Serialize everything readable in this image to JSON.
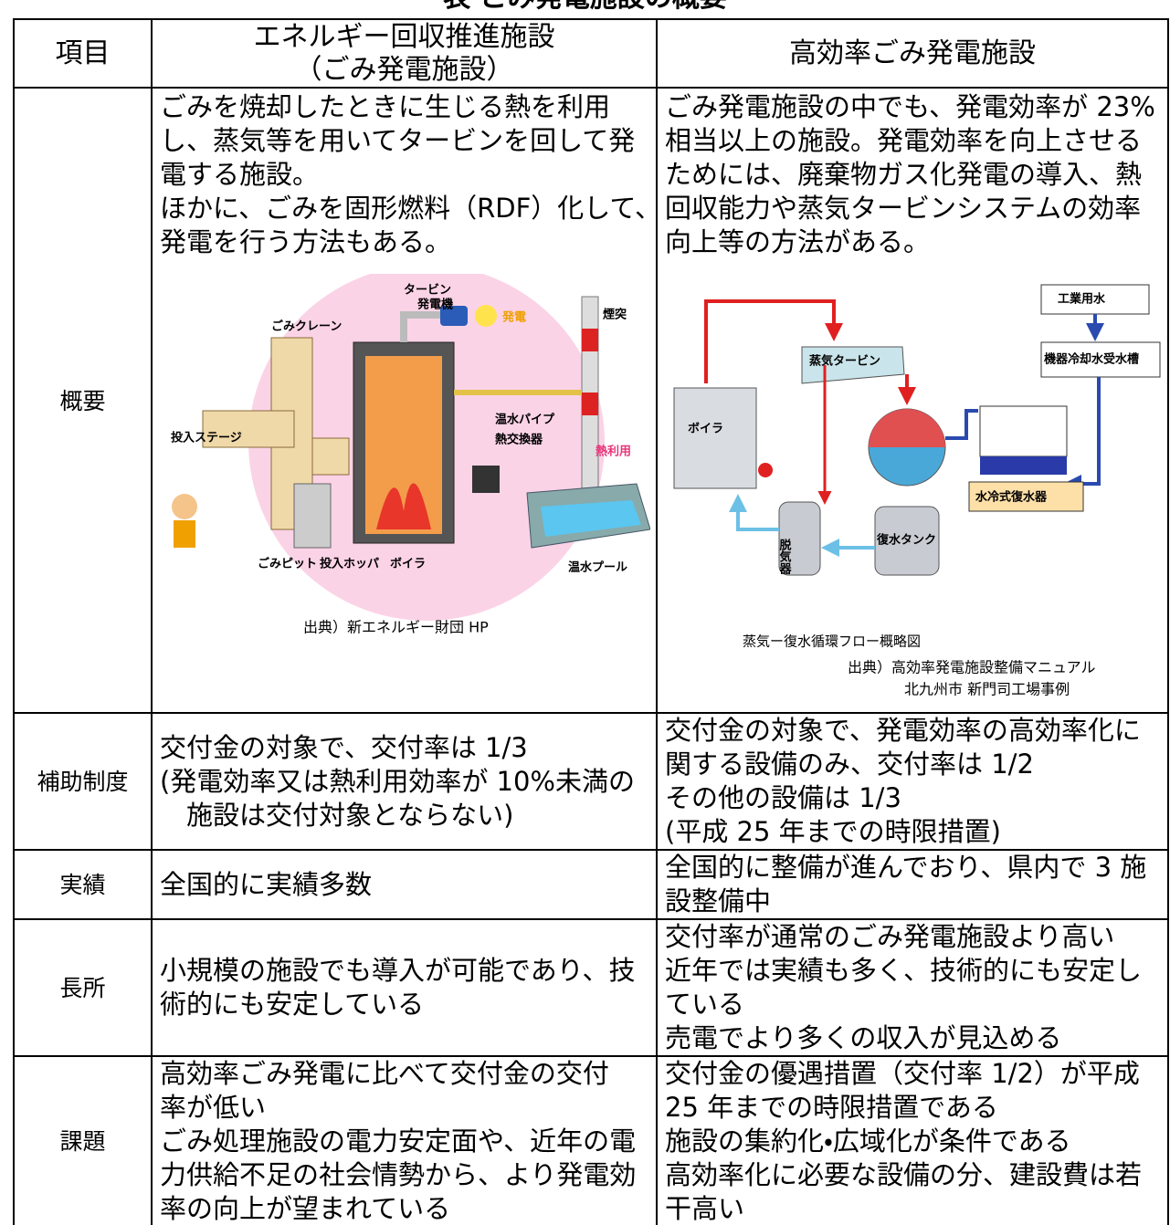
{
  "title": "表 ごみ発電施設の概要",
  "table": {
    "header": [
      [
        "項目"
      ],
      [
        "エネルギー回収推進施設",
        "（ごみ発電施設）"
      ],
      [
        "高効率ごみ発電施設"
      ]
    ],
    "rows": [
      {
        "label": "概要",
        "left": [
          "ごみを焼却したときに生じる熱を利用",
          "し、蒸気等を用いてタービンを回して発",
          "電する施設。",
          "ほかに、ごみを固形燃料（RDF）化して、",
          "発電を行う方法もある。"
        ],
        "right": [
          "ごみ発電施設の中でも、発電効率が 23%",
          "相当以上の施設。発電効率を向上させる",
          "ためには、廃棄物ガス化発電の導入、熱",
          "回収能力や蒸気タービンシステムの効率",
          "向上等の方法がある。"
        ]
      },
      {
        "label": "補助制度",
        "left": [
          "交付金の対象で、交付率は 1/3",
          "(発電効率又は熱利用効率が 10%未満の",
          "　施設は交付対象とならない)"
        ],
        "right": [
          "交付金の対象で、発電効率の高効率化に",
          "関する設備のみ、交付率は 1/2",
          "その他の設備は 1/3",
          "(平成 25 年までの時限措置)"
        ]
      },
      {
        "label": "実績",
        "left": [
          "全国的に実績多数"
        ],
        "right": [
          "全国的に整備が進んでおり、県内で 3 施",
          "設整備中"
        ]
      },
      {
        "label": "長所",
        "left": [
          "小規模の施設でも導入が可能であり、技",
          "術的にも安定している"
        ],
        "right": [
          "交付率が通常のごみ発電施設より高い",
          "近年では実績も多く、技術的にも安定し",
          "ている",
          "売電でより多くの収入が見込める"
        ]
      },
      {
        "label": "課題",
        "left": [
          "高効率ごみ発電に比べて交付金の交付",
          "率が低い",
          "ごみ処理施設の電力安定面や、近年の電",
          "力供給不足の社会情勢から、より発電効",
          "率の向上が望まれている"
        ],
        "right": [
          "交付金の優遇措置（交付率 1/2）が平成",
          "25 年までの時限措置である",
          "施設の集約化・広域化が条件である",
          "高効率化に必要な設備の分、建設費は若",
          "干高い"
        ]
      }
    ]
  },
  "figure1": {
    "labels": [
      "タービン",
      "発電機",
      "発電",
      "煙突",
      "ごみクレーン",
      "温水パイプ",
      "熱交換器",
      "熱利用",
      "投入ステージ",
      "ごみピット",
      "投入ホッパ",
      "ボイラ",
      "温水プール"
    ],
    "source": "出典）新エネルギー財団 HP"
  },
  "figure2": {
    "labels": [
      "工業用水",
      "機器冷却水受水槽",
      "蒸気タービン",
      "ボイラ",
      "水冷式復水器",
      "脱気器",
      "復水タンク"
    ],
    "caption": "蒸気ー復水循環フロー概略図",
    "source": [
      "出典）高効率発電施設整備マニュアル",
      "北九州市 新門司工場事例"
    ]
  }
}
